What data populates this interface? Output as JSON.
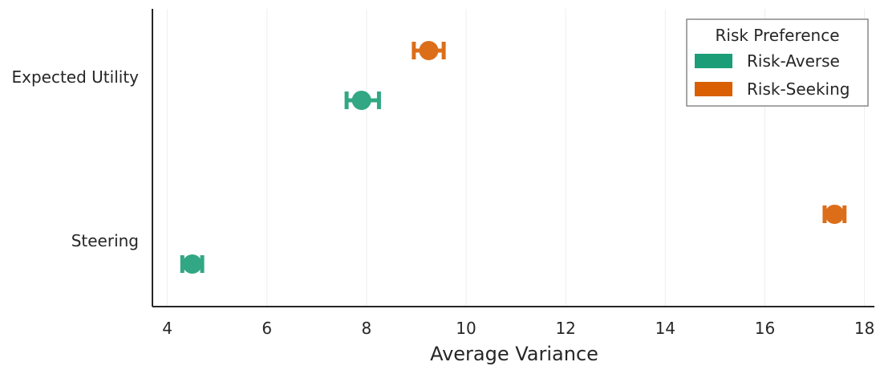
{
  "chart_data": {
    "type": "scatter",
    "subtype": "dot-with-error-bars",
    "title": "",
    "xlabel": "Average Variance",
    "ylabel": "",
    "xlim": [
      3.7,
      18.2
    ],
    "xticks": [
      4,
      6,
      8,
      10,
      12,
      14,
      16,
      18
    ],
    "categories": [
      "Expected Utility",
      "Steering"
    ],
    "grid": {
      "x": true,
      "y": false
    },
    "legend": {
      "title": "Risk Preference",
      "placement": "top-right"
    },
    "series": [
      {
        "name": "Risk-Averse",
        "color": "#1b9e77",
        "points": [
          {
            "category": "Expected Utility",
            "value": 7.9,
            "err_low": 7.6,
            "err_high": 8.25
          },
          {
            "category": "Steering",
            "value": 4.5,
            "err_low": 4.3,
            "err_high": 4.7
          }
        ]
      },
      {
        "name": "Risk-Seeking",
        "color": "#d95f02",
        "points": [
          {
            "category": "Expected Utility",
            "value": 9.25,
            "err_low": 8.95,
            "err_high": 9.55
          },
          {
            "category": "Steering",
            "value": 17.4,
            "err_low": 17.2,
            "err_high": 17.6
          }
        ]
      }
    ]
  }
}
